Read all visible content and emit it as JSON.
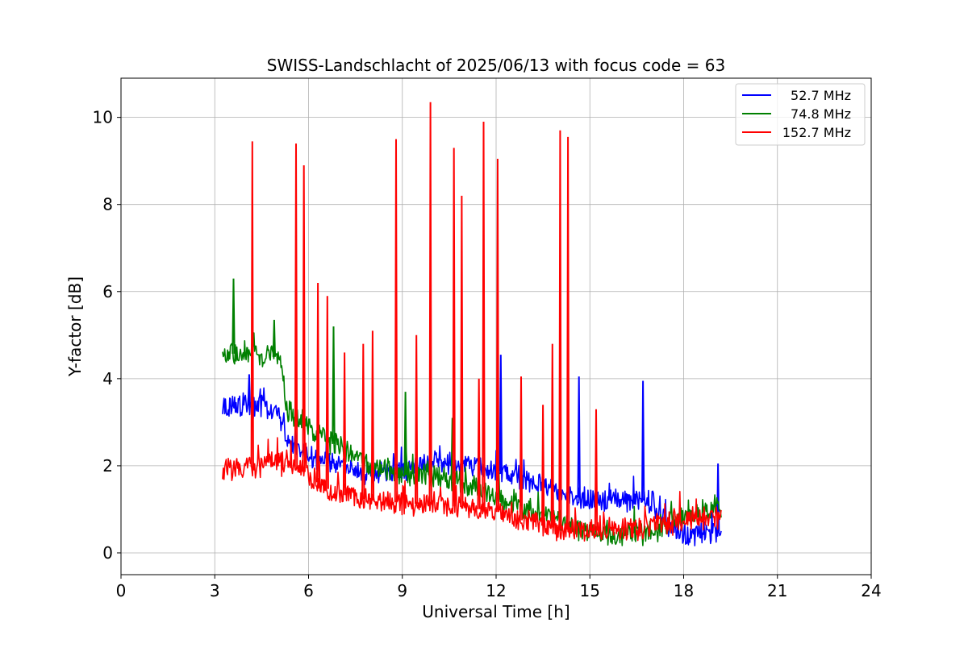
{
  "chart_data": {
    "type": "line",
    "title": "SWISS-Landschlacht of 2025/06/13 with focus code = 63",
    "xlabel": "Universal Time [h]",
    "ylabel": "Y-factor [dB]",
    "xlim": [
      0,
      24
    ],
    "ylim": [
      -0.5,
      10.9
    ],
    "x_ticks": [
      0,
      3,
      6,
      9,
      12,
      15,
      18,
      21,
      24
    ],
    "x_tick_labels": [
      "0",
      "3",
      "6",
      "9",
      "12",
      "15",
      "18",
      "21",
      "24"
    ],
    "y_ticks": [
      0,
      2,
      4,
      6,
      8,
      10
    ],
    "y_tick_labels": [
      "0",
      "2",
      "4",
      "6",
      "8",
      "10"
    ],
    "grid": true,
    "legend_position": "top-right",
    "series": [
      {
        "name": "52.7 MHz",
        "color": "#0000ff",
        "x": [
          3.25,
          4.0,
          4.7,
          5.0,
          5.3,
          5.6,
          6.0,
          7.0,
          8.0,
          9.0,
          10.0,
          11.0,
          12.0,
          13.0,
          14.0,
          15.0,
          16.0,
          17.0,
          17.5,
          18.0,
          18.5,
          19.2
        ],
        "y": [
          3.35,
          3.4,
          3.3,
          3.2,
          2.6,
          2.4,
          2.2,
          2.0,
          1.8,
          1.9,
          2.1,
          2.0,
          1.9,
          1.7,
          1.4,
          1.2,
          1.2,
          1.2,
          0.6,
          0.4,
          0.45,
          0.5
        ],
        "spikes": [
          [
            4.1,
            4.1
          ],
          [
            12.15,
            4.55
          ],
          [
            14.65,
            4.05
          ],
          [
            16.7,
            3.95
          ],
          [
            19.1,
            2.05
          ]
        ]
      },
      {
        "name": "74.8 MHz",
        "color": "#008000",
        "x": [
          3.25,
          4.0,
          4.7,
          5.1,
          5.3,
          5.6,
          6.0,
          7.0,
          8.0,
          9.0,
          10.0,
          11.0,
          12.0,
          13.0,
          14.0,
          14.7,
          16.0,
          17.0,
          17.5,
          18.0,
          18.5,
          19.2
        ],
        "y": [
          4.55,
          4.6,
          4.5,
          4.5,
          3.3,
          3.1,
          2.9,
          2.4,
          2.0,
          1.8,
          1.75,
          1.6,
          1.3,
          1.0,
          0.8,
          0.5,
          0.4,
          0.45,
          0.7,
          0.85,
          0.9,
          1.0
        ],
        "spikes": [
          [
            3.6,
            6.3
          ],
          [
            4.9,
            5.35
          ],
          [
            6.8,
            5.2
          ],
          [
            9.1,
            3.7
          ],
          [
            10.6,
            3.1
          ]
        ]
      },
      {
        "name": "152.7 MHz",
        "color": "#ff0000",
        "x": [
          3.25,
          4.0,
          5.0,
          5.5,
          6.0,
          6.5,
          7.0,
          8.0,
          9.0,
          10.0,
          11.0,
          12.0,
          13.0,
          14.0,
          15.0,
          16.0,
          17.0,
          18.0,
          19.2
        ],
        "y": [
          1.9,
          1.95,
          2.05,
          2.0,
          1.8,
          1.5,
          1.35,
          1.2,
          1.15,
          1.1,
          1.05,
          0.95,
          0.7,
          0.55,
          0.5,
          0.55,
          0.6,
          0.75,
          0.85
        ],
        "spikes": [
          [
            4.2,
            9.45
          ],
          [
            5.6,
            9.4
          ],
          [
            5.85,
            8.9
          ],
          [
            6.3,
            6.2
          ],
          [
            6.6,
            5.9
          ],
          [
            7.15,
            4.6
          ],
          [
            7.75,
            4.8
          ],
          [
            8.05,
            5.1
          ],
          [
            8.8,
            9.5
          ],
          [
            9.45,
            5.0
          ],
          [
            9.9,
            10.35
          ],
          [
            10.65,
            9.3
          ],
          [
            10.9,
            8.2
          ],
          [
            11.45,
            4.0
          ],
          [
            11.6,
            9.9
          ],
          [
            12.05,
            9.05
          ],
          [
            12.8,
            4.05
          ],
          [
            13.5,
            3.4
          ],
          [
            13.8,
            4.8
          ],
          [
            14.05,
            9.7
          ],
          [
            14.3,
            9.55
          ],
          [
            15.2,
            3.3
          ]
        ]
      }
    ]
  }
}
